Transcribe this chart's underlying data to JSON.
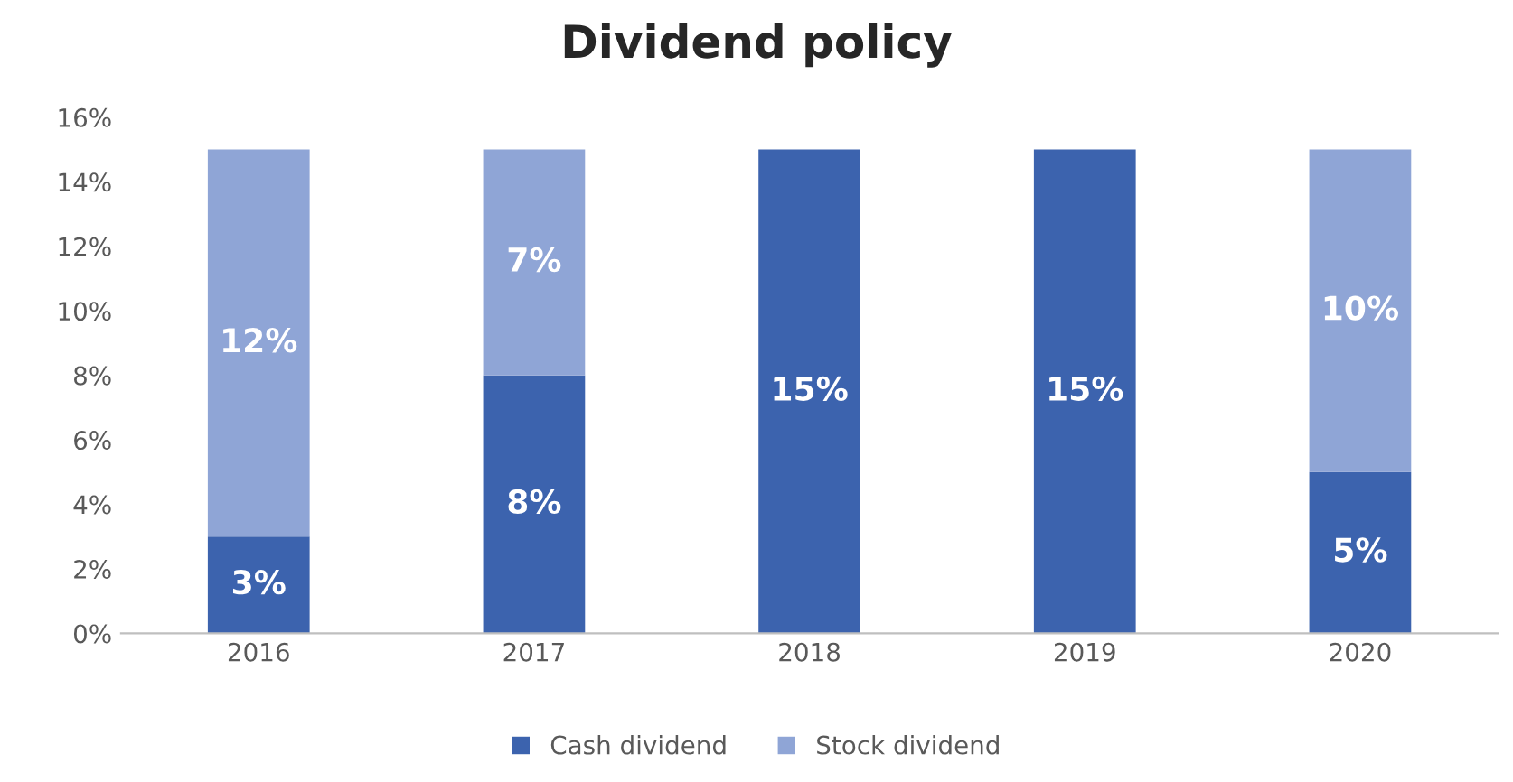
{
  "chart_data": {
    "type": "bar",
    "title": "Dividend policy",
    "stacked": true,
    "categories": [
      "2016",
      "2017",
      "2018",
      "2019",
      "2020"
    ],
    "series": [
      {
        "name": "Cash dividend",
        "color": "#3c63ae",
        "values": [
          3,
          8,
          15,
          15,
          5
        ],
        "value_labels": [
          "3%",
          "8%",
          "15%",
          "15%",
          "5%"
        ]
      },
      {
        "name": "Stock dividend",
        "color": "#8fa5d6",
        "values": [
          12,
          7,
          null,
          null,
          10
        ],
        "value_labels": [
          "12%",
          "7%",
          null,
          null,
          "10%"
        ]
      }
    ],
    "ylim": [
      0,
      16
    ],
    "yticks": [
      {
        "value": 0,
        "label": "0%"
      },
      {
        "value": 2,
        "label": "2%"
      },
      {
        "value": 4,
        "label": "4%"
      },
      {
        "value": 6,
        "label": "6%"
      },
      {
        "value": 8,
        "label": "8%"
      },
      {
        "value": 10,
        "label": "10%"
      },
      {
        "value": 12,
        "label": "12%"
      },
      {
        "value": 14,
        "label": "14%"
      },
      {
        "value": 16,
        "label": "16%"
      }
    ],
    "grid": false,
    "legend": "bottom"
  }
}
